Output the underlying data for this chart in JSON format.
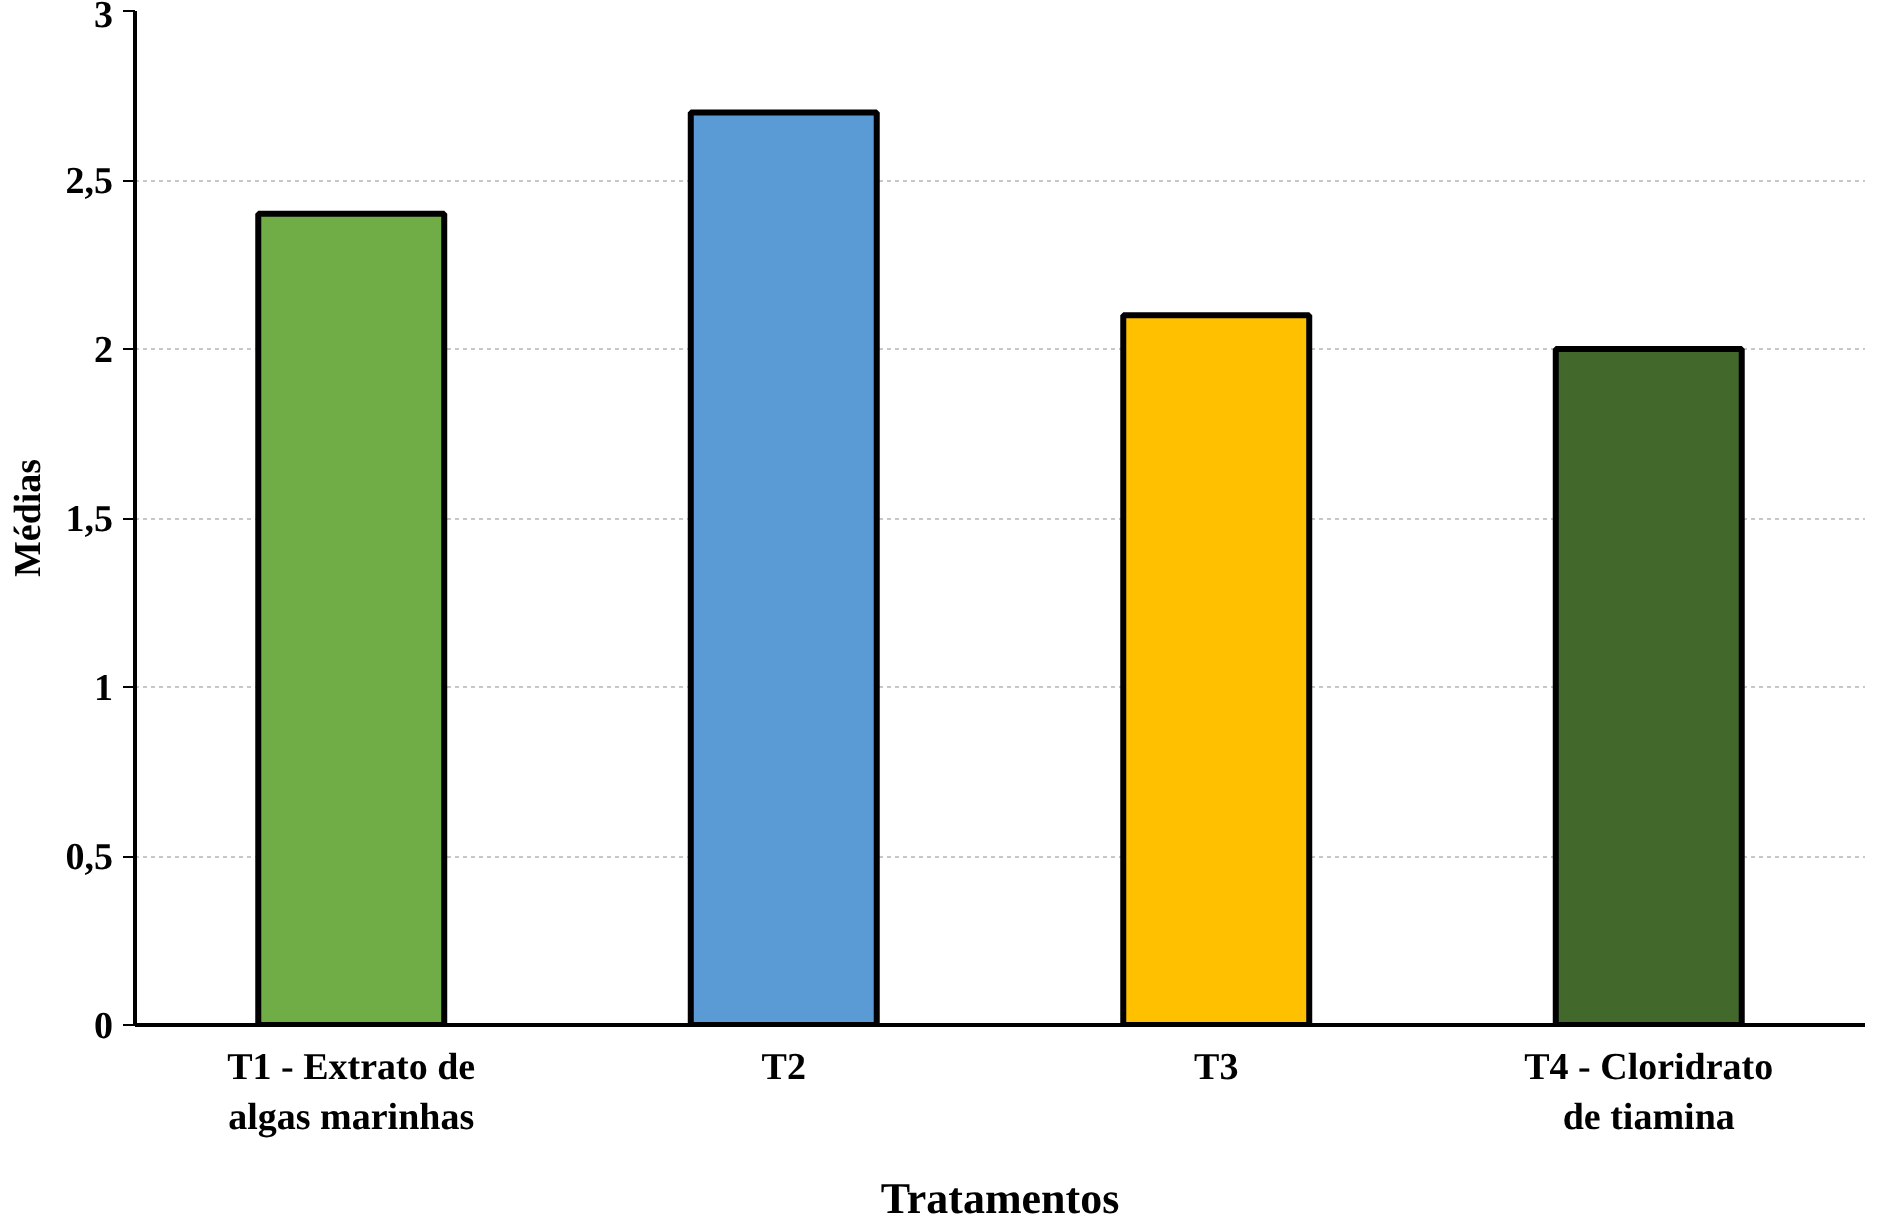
{
  "chart_data": {
    "type": "bar",
    "xlabel": "Tratamentos",
    "ylabel": "Médias",
    "categories": [
      "T1 - Extrato de algas marinhas",
      "T2",
      "T3",
      "T4 - Cloridrato de tiamina"
    ],
    "values": [
      2.4,
      2.7,
      2.1,
      2.0
    ],
    "colors": [
      "#70ad47",
      "#5b9bd5",
      "#ffc000",
      "#43682b"
    ],
    "ylim": [
      0,
      3
    ],
    "yticks": [
      0,
      {
        "value": 0.5,
        "label": "0,5"
      },
      1,
      {
        "value": 1.5,
        "label": "1,5"
      },
      2,
      {
        "value": 2.5,
        "label": "2,5"
      },
      3
    ],
    "grid": "y"
  }
}
